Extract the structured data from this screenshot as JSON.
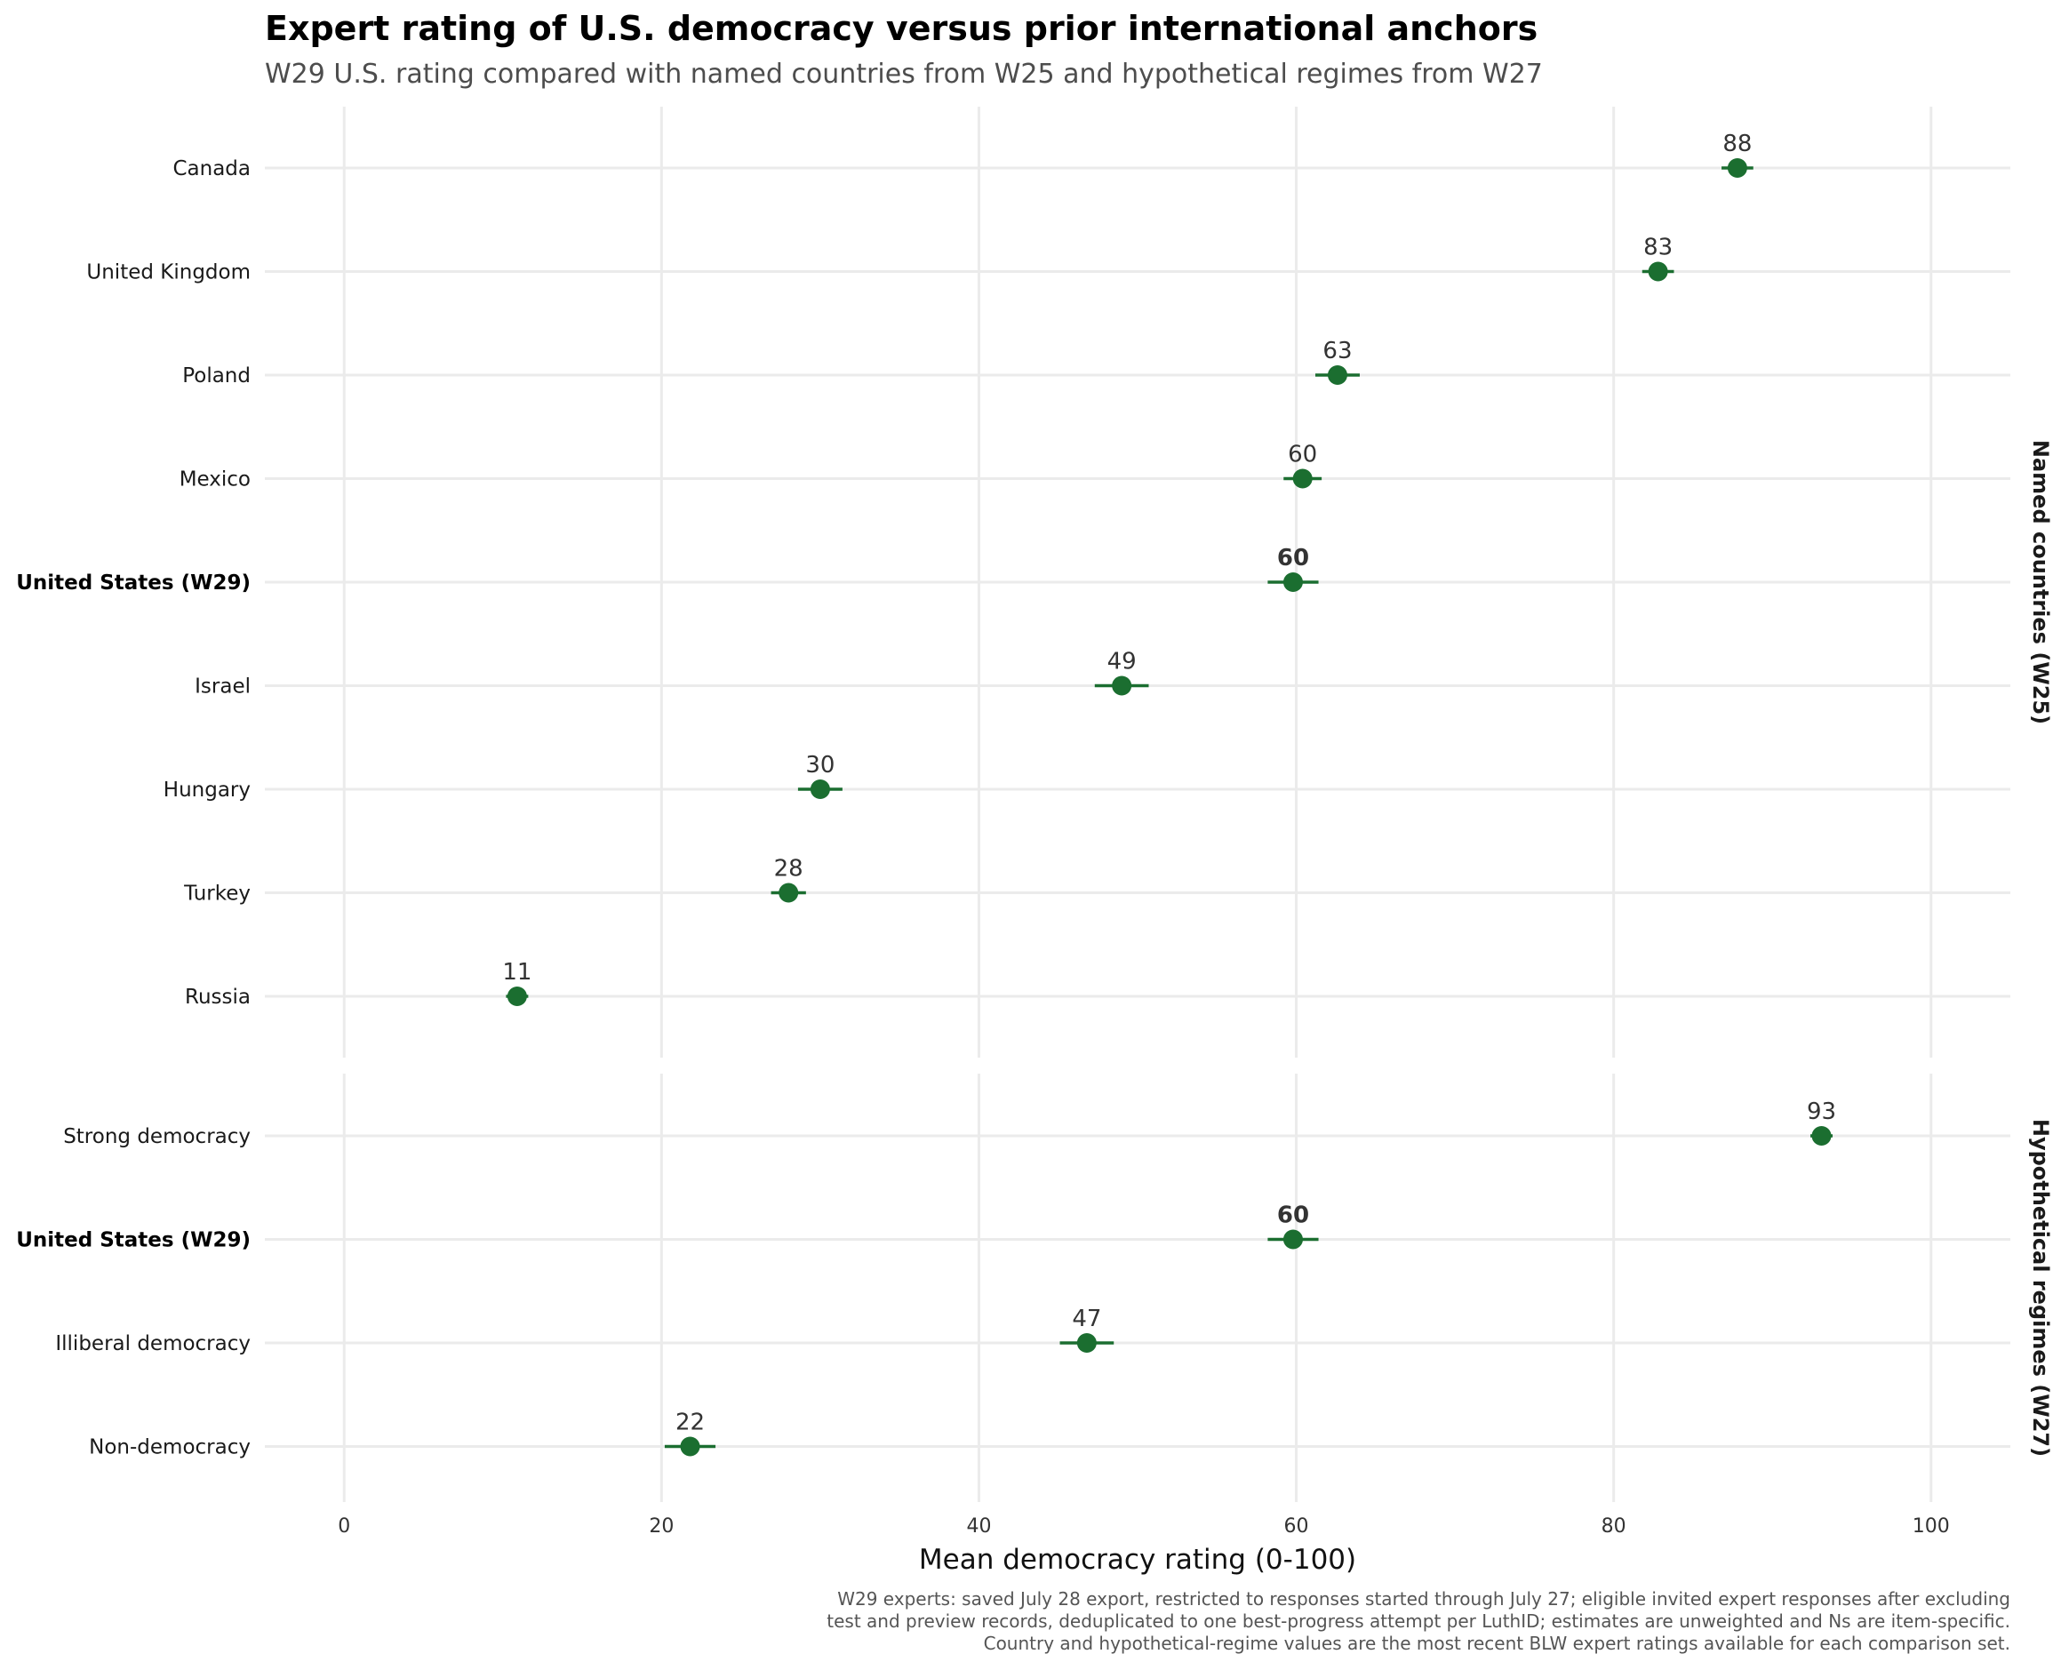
{
  "chart_data": {
    "type": "scatter",
    "title": "Expert rating of U.S. democracy versus prior international anchors",
    "subtitle": "W29 U.S. rating compared with named countries from W25 and hypothetical regimes from W27",
    "xlabel": "Mean democracy rating (0-100)",
    "xlim": [
      -5,
      105
    ],
    "xticks": [
      0,
      20,
      40,
      60,
      80,
      100
    ],
    "grid": true,
    "color": "#1b6e30",
    "panels": [
      {
        "name": "Named countries (W25)",
        "points": [
          {
            "label": "Canada",
            "value": 87.8,
            "lo": 86.8,
            "hi": 88.8,
            "value_label": "88",
            "highlight": false
          },
          {
            "label": "United Kingdom",
            "value": 82.8,
            "lo": 81.8,
            "hi": 83.8,
            "value_label": "83",
            "highlight": false
          },
          {
            "label": "Poland",
            "value": 62.6,
            "lo": 61.2,
            "hi": 64.0,
            "value_label": "63",
            "highlight": false
          },
          {
            "label": "Mexico",
            "value": 60.4,
            "lo": 59.2,
            "hi": 61.6,
            "value_label": "60",
            "highlight": false
          },
          {
            "label": "United States (W29)",
            "value": 59.8,
            "lo": 58.2,
            "hi": 61.4,
            "value_label": "60",
            "highlight": true
          },
          {
            "label": "Israel",
            "value": 49.0,
            "lo": 47.3,
            "hi": 50.7,
            "value_label": "49",
            "highlight": false
          },
          {
            "label": "Hungary",
            "value": 30.0,
            "lo": 28.6,
            "hi": 31.4,
            "value_label": "30",
            "highlight": false
          },
          {
            "label": "Turkey",
            "value": 28.0,
            "lo": 26.9,
            "hi": 29.1,
            "value_label": "28",
            "highlight": false
          },
          {
            "label": "Russia",
            "value": 10.9,
            "lo": 10.2,
            "hi": 11.6,
            "value_label": "11",
            "highlight": false
          }
        ]
      },
      {
        "name": "Hypothetical regimes (W27)",
        "points": [
          {
            "label": "Strong democracy",
            "value": 93.1,
            "lo": 92.4,
            "hi": 93.8,
            "value_label": "93",
            "highlight": false
          },
          {
            "label": "United States (W29)",
            "value": 59.8,
            "lo": 58.2,
            "hi": 61.4,
            "value_label": "60",
            "highlight": true
          },
          {
            "label": "Illiberal democracy",
            "value": 46.8,
            "lo": 45.1,
            "hi": 48.5,
            "value_label": "47",
            "highlight": false
          },
          {
            "label": "Non-democracy",
            "value": 21.8,
            "lo": 20.2,
            "hi": 23.4,
            "value_label": "22",
            "highlight": false
          }
        ]
      }
    ],
    "caption": [
      "W29 experts: saved July 28 export, restricted to responses started through July 27; eligible invited expert responses after excluding",
      "test and preview records, deduplicated to one best-progress attempt per LuthID; estimates are unweighted and Ns are item-specific.",
      "Country and hypothetical-regime values are the most recent BLW expert ratings available for each comparison set."
    ]
  }
}
